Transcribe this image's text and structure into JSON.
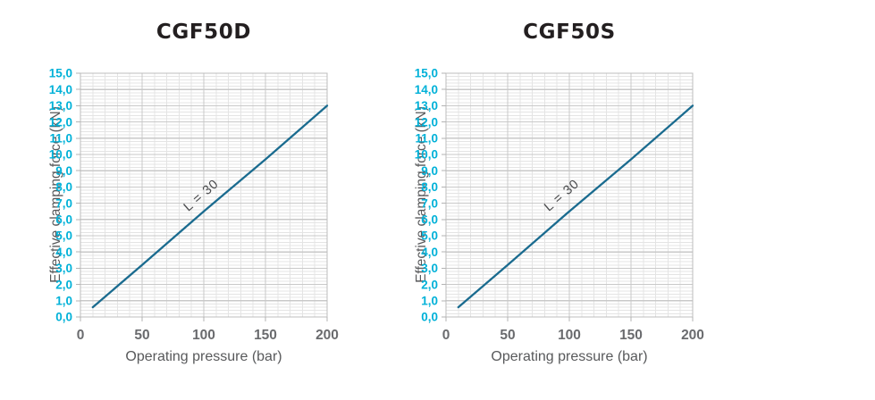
{
  "page": {
    "background": "#ffffff"
  },
  "colors": {
    "accent_cyan": "#00b1d8",
    "series_line": "#1a6b8f",
    "title_text": "#231f20",
    "axis_text": "#58595b",
    "x_tick_text": "#6a6b6e",
    "annotation_text": "#4b4c4e",
    "grid_minor": "#e4e4e4",
    "grid_major": "#c9c9c9",
    "plot_border": "#bdbdbd",
    "tick_mark": "#b3b3b3"
  },
  "chart_data": [
    {
      "type": "line",
      "title": "CGF50D",
      "xlabel": "Operating pressure (bar)",
      "ylabel": "Effective clamping force (kN)",
      "xlim": [
        0,
        200
      ],
      "ylim": [
        0,
        15
      ],
      "x_ticks": [
        0,
        50,
        100,
        150,
        200
      ],
      "x_tick_labels": [
        "0",
        "50",
        "100",
        "150",
        "200"
      ],
      "y_ticks": [
        15,
        14,
        13,
        12,
        11,
        10,
        9,
        8,
        7,
        6,
        5,
        4,
        3,
        2,
        1,
        0
      ],
      "y_tick_labels": [
        "15,0",
        "14,0",
        "13,0",
        "12,0",
        "11,0",
        "10,0",
        "9,0",
        "8,0",
        "7,0",
        "6,0",
        "5,0",
        "4,0",
        "3,0",
        "2,0",
        "1,0",
        "0,0"
      ],
      "x_minor_step": 10,
      "y_minor_step": 0.2,
      "grid": "minor+major",
      "legend_position": "none",
      "series": [
        {
          "name": "L = 30",
          "x": [
            10,
            50,
            100,
            150,
            200
          ],
          "y": [
            0.6,
            3.2,
            6.5,
            9.7,
            13.0
          ]
        }
      ],
      "annotation": {
        "text": "L = 30",
        "x": 100,
        "y": 7.3,
        "rotation_deg": -41
      }
    },
    {
      "type": "line",
      "title": "CGF50S",
      "xlabel": "Operating pressure (bar)",
      "ylabel": "Effective clamping force (kN)",
      "xlim": [
        0,
        200
      ],
      "ylim": [
        0,
        15
      ],
      "x_ticks": [
        0,
        50,
        100,
        150,
        200
      ],
      "x_tick_labels": [
        "0",
        "50",
        "100",
        "150",
        "200"
      ],
      "y_ticks": [
        15,
        14,
        13,
        12,
        11,
        10,
        9,
        8,
        7,
        6,
        5,
        4,
        3,
        2,
        1,
        0
      ],
      "y_tick_labels": [
        "15,0",
        "14,0",
        "13,0",
        "12,0",
        "11,0",
        "10,0",
        "9,0",
        "8,0",
        "7,0",
        "6,0",
        "5,0",
        "4,0",
        "3,0",
        "2,0",
        "1,0",
        "0,0"
      ],
      "x_minor_step": 10,
      "y_minor_step": 0.2,
      "grid": "minor+major",
      "legend_position": "none",
      "series": [
        {
          "name": "L = 30",
          "x": [
            10,
            50,
            100,
            150,
            200
          ],
          "y": [
            0.6,
            3.2,
            6.5,
            9.7,
            13.0
          ]
        }
      ],
      "annotation": {
        "text": "L = 30",
        "x": 96,
        "y": 7.3,
        "rotation_deg": -41
      }
    }
  ]
}
